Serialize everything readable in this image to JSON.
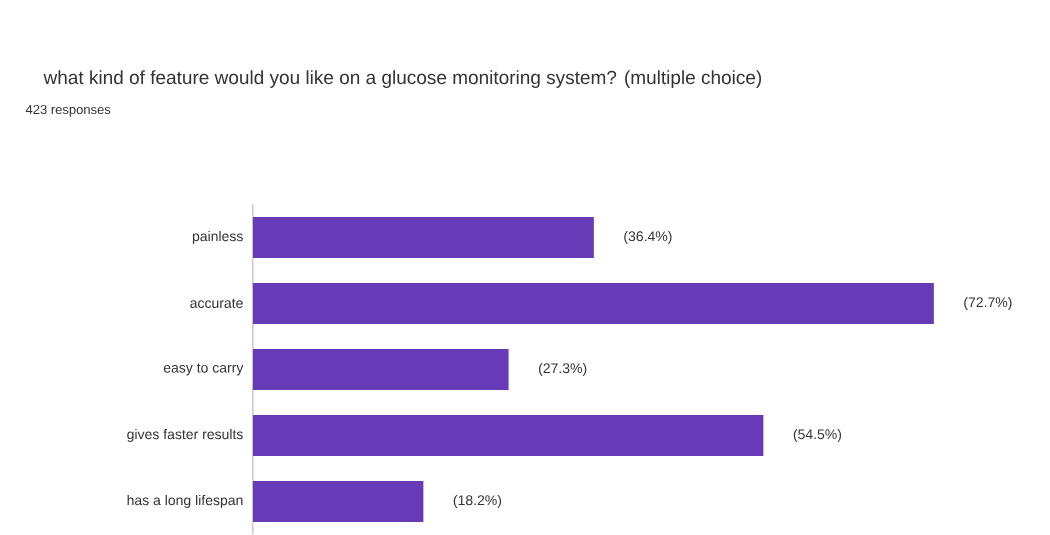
{
  "chart_data": {
    "type": "bar",
    "orientation": "horizontal",
    "title": "what kind of feature would you like on a glucose monitoring system? (multiple choice)",
    "subtitle": "423 responses",
    "categories": [
      "painless",
      "accurate",
      "easy to carry",
      "gives faster results",
      "has a long lifespan"
    ],
    "values": [
      36.4,
      72.7,
      27.3,
      54.5,
      18.2
    ],
    "value_labels": [
      "(36.4%)",
      "(72.7%)",
      "(27.3%)",
      "(54.5%)",
      "(18.2%)"
    ],
    "color": "#673ab7"
  }
}
